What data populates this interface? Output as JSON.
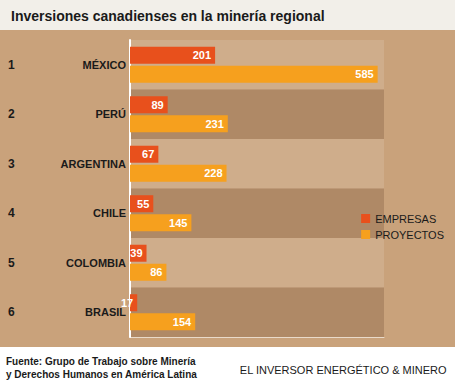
{
  "chart_data": {
    "type": "bar",
    "orientation": "horizontal",
    "title": "Inversiones canadienses en la minería regional",
    "categories": [
      "MÉXICO",
      "PERÚ",
      "ARGENTINA",
      "CHILE",
      "COLOMBIA",
      "BRASIL"
    ],
    "ranks": [
      1,
      2,
      3,
      4,
      5,
      6
    ],
    "series": [
      {
        "name": "EMPRESAS",
        "color": "#e8501c",
        "values": [
          201,
          89,
          67,
          55,
          39,
          17
        ]
      },
      {
        "name": "PROYECTOS",
        "color": "#f6a01e",
        "values": [
          585,
          231,
          228,
          145,
          86,
          154
        ]
      }
    ],
    "xlim": [
      0,
      600
    ],
    "tick_labels": false,
    "grid": false,
    "legend": "right",
    "data_labels": true,
    "source": "Fuente: Grupo de Trabajo sobre Minería\ny Derechos Humanos en América Latina",
    "credit": "EL INVERSOR ENERGÉTICO & MINERO"
  }
}
